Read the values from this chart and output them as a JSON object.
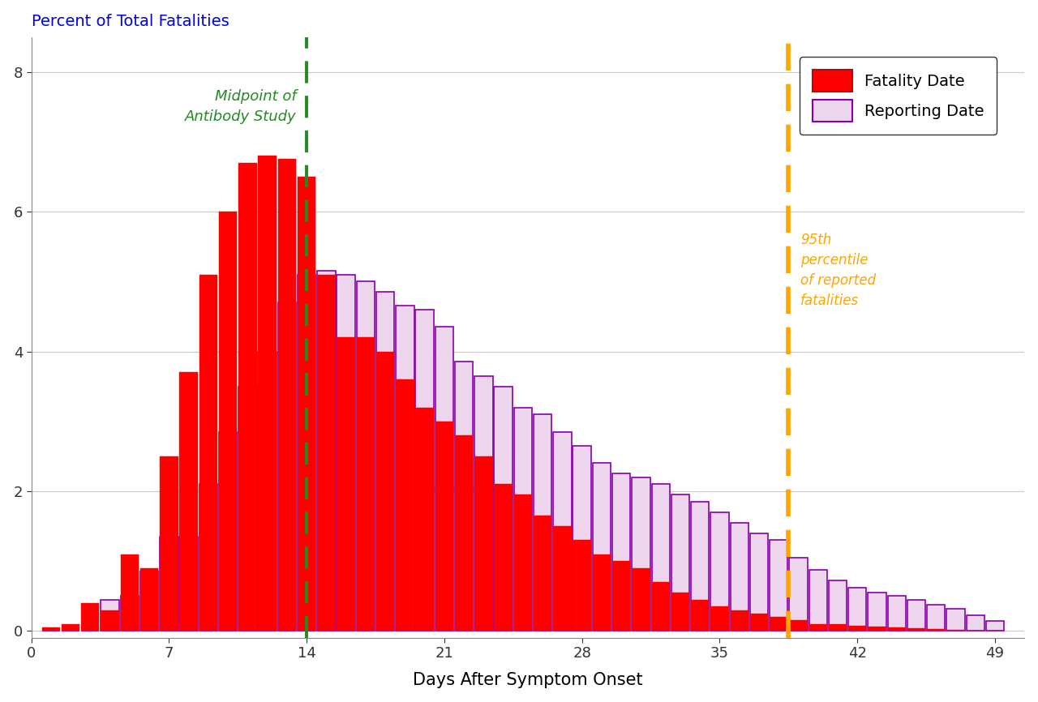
{
  "title": "Percent of Total Fatalities",
  "xlabel": "Days After Symptom Onset",
  "ylabel": "",
  "ylim": [
    -0.1,
    8.5
  ],
  "xlim": [
    0.0,
    50.5
  ],
  "xticks": [
    0,
    7,
    14,
    21,
    28,
    35,
    42,
    49
  ],
  "yticks": [
    0,
    2,
    4,
    6,
    8
  ],
  "green_line_x": 14.0,
  "orange_line_x": 38.5,
  "green_label": "Midpoint of\nAntibody Study",
  "orange_label": "95th\npercentile\nof reported\nfatalities",
  "fatality_color": "#FF0000",
  "reporting_color": "#EDD5ED",
  "reporting_edge_color": "#8800AA",
  "fatality_date": [
    0.05,
    0.1,
    0.4,
    0.3,
    1.1,
    0.9,
    2.5,
    3.7,
    5.1,
    6.0,
    6.7,
    6.8,
    6.75,
    6.5,
    5.1,
    4.2,
    4.2,
    4.0,
    3.6,
    3.2,
    3.0,
    2.8,
    2.5,
    2.1,
    1.95,
    1.65,
    1.5,
    1.3,
    1.1,
    1.0,
    0.9,
    0.7,
    0.55,
    0.45,
    0.35,
    0.3,
    0.25,
    0.2,
    0.15,
    0.1,
    0.1,
    0.08,
    0.06,
    0.05,
    0.04,
    0.03,
    0.02,
    0.01,
    0.0
  ],
  "reporting_date": [
    0.0,
    0.0,
    0.0,
    0.45,
    0.5,
    0.85,
    1.35,
    1.35,
    2.1,
    2.85,
    3.5,
    4.0,
    4.7,
    5.1,
    5.15,
    5.1,
    5.0,
    4.85,
    4.65,
    4.6,
    4.35,
    3.85,
    3.65,
    3.5,
    3.2,
    3.1,
    2.85,
    2.65,
    2.4,
    2.25,
    2.2,
    2.1,
    1.95,
    1.85,
    1.7,
    1.55,
    1.4,
    1.3,
    1.05,
    0.88,
    0.72,
    0.62,
    0.55,
    0.5,
    0.44,
    0.38,
    0.32,
    0.22,
    0.14
  ],
  "background_color": "#FFFFFF",
  "title_color": "#0000EE",
  "green_color": "#228B22",
  "orange_color": "#FFA500",
  "legend_fontsize": 14,
  "axis_fontsize": 14,
  "title_fontsize": 14,
  "bar_width": 0.92
}
